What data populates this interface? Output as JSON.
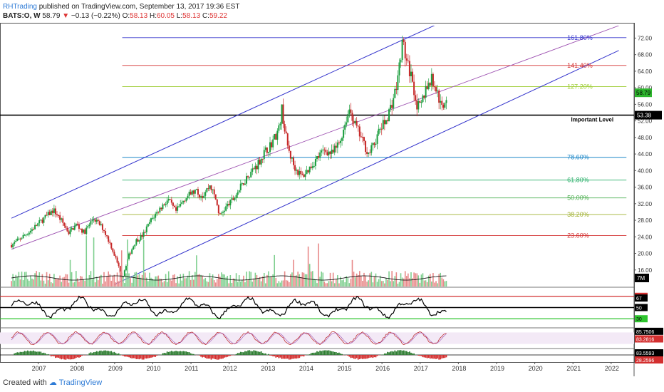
{
  "header": {
    "author": "RHTrading",
    "published": " published on TradingView.com, September 13, 2017 19:36 EST",
    "ticker": "BATS:O, W",
    "last": "58.79",
    "change": "−0.13 (−0.22%)",
    "open_label": "O:",
    "open": "58.13",
    "high_label": "H:",
    "high": "60.05",
    "low_label": "L:",
    "low": "58.13",
    "close_label": "C:",
    "close": "59.22"
  },
  "footer": {
    "created_with": "Created with",
    "brand": "TradingView"
  },
  "colors": {
    "up": "#1b9e3e",
    "down": "#c62828",
    "channel": "#3333cc",
    "median": "#9c4fb0",
    "fib_161": "#3333cc",
    "fib_141": "#d32f2f",
    "fib_127": "#9ccc2f",
    "fib_786": "#1e88c8",
    "fib_618": "#2ab06a",
    "fib_50": "#4caf50",
    "fib_382": "#a0b030",
    "fib_236": "#d32f2f",
    "important": "#000000",
    "price_tag": "#2db52d"
  },
  "chart_data": {
    "type": "candlestick",
    "x_tick_labels": [
      "2007",
      "2008",
      "2009",
      "2010",
      "2011",
      "2012",
      "2013",
      "2014",
      "2015",
      "2016",
      "2017",
      "2018",
      "2019",
      "2020",
      "2021",
      "2022"
    ],
    "y_tick_labels": [
      "16.00",
      "20.00",
      "24.00",
      "28.00",
      "32.00",
      "36.00",
      "40.00",
      "44.00",
      "48.00",
      "52.00",
      "56.00",
      "60.00",
      "64.00",
      "68.00",
      "72.00"
    ],
    "ylim": [
      12,
      75
    ],
    "fib_levels": [
      {
        "label": "161.80%",
        "value": 72.1,
        "color_key": "fib_161"
      },
      {
        "label": "141.40%",
        "value": 65.4,
        "color_key": "fib_141"
      },
      {
        "label": "127.20%",
        "value": 60.3,
        "color_key": "fib_127"
      },
      {
        "label": "78.60%",
        "value": 43.2,
        "color_key": "fib_786"
      },
      {
        "label": "61.80%",
        "value": 37.7,
        "color_key": "fib_618"
      },
      {
        "label": "50.00%",
        "value": 33.4,
        "color_key": "fib_50"
      },
      {
        "label": "38.20%",
        "value": 29.4,
        "color_key": "fib_382"
      },
      {
        "label": "23.60%",
        "value": 24.3,
        "color_key": "fib_236"
      }
    ],
    "important_level": {
      "label": "Important Level",
      "value": 53.38,
      "tag": "53.38"
    },
    "last_price_tag": "58.79",
    "price_path": [
      [
        2006.3,
        22
      ],
      [
        2006.8,
        25.5
      ],
      [
        2007.1,
        28
      ],
      [
        2007.4,
        30.5
      ],
      [
        2007.6,
        28
      ],
      [
        2007.8,
        25
      ],
      [
        2008.0,
        27
      ],
      [
        2008.2,
        25
      ],
      [
        2008.45,
        28.5
      ],
      [
        2008.7,
        26
      ],
      [
        2008.9,
        22
      ],
      [
        2009.1,
        17
      ],
      [
        2009.2,
        14
      ],
      [
        2009.35,
        19
      ],
      [
        2009.55,
        23
      ],
      [
        2009.75,
        24.5
      ],
      [
        2009.95,
        28
      ],
      [
        2010.2,
        31
      ],
      [
        2010.4,
        33
      ],
      [
        2010.6,
        30
      ],
      [
        2010.85,
        33.5
      ],
      [
        2011.1,
        35
      ],
      [
        2011.3,
        34
      ],
      [
        2011.5,
        36.5
      ],
      [
        2011.65,
        33
      ],
      [
        2011.75,
        29
      ],
      [
        2011.9,
        31
      ],
      [
        2012.1,
        33
      ],
      [
        2012.3,
        36
      ],
      [
        2012.5,
        39
      ],
      [
        2012.7,
        41
      ],
      [
        2012.9,
        44
      ],
      [
        2013.1,
        46.5
      ],
      [
        2013.3,
        50
      ],
      [
        2013.38,
        55
      ],
      [
        2013.45,
        50
      ],
      [
        2013.55,
        45
      ],
      [
        2013.7,
        41
      ],
      [
        2013.9,
        38.5
      ],
      [
        2014.05,
        40
      ],
      [
        2014.3,
        43
      ],
      [
        2014.5,
        45
      ],
      [
        2014.7,
        44
      ],
      [
        2014.9,
        47
      ],
      [
        2015.05,
        52
      ],
      [
        2015.15,
        55
      ],
      [
        2015.3,
        51
      ],
      [
        2015.5,
        47
      ],
      [
        2015.65,
        44
      ],
      [
        2015.8,
        46.5
      ],
      [
        2015.95,
        50
      ],
      [
        2016.1,
        52
      ],
      [
        2016.25,
        56
      ],
      [
        2016.4,
        61
      ],
      [
        2016.5,
        69
      ],
      [
        2016.55,
        71
      ],
      [
        2016.65,
        66
      ],
      [
        2016.8,
        62
      ],
      [
        2016.9,
        56
      ],
      [
        2017.0,
        55
      ],
      [
        2017.15,
        60
      ],
      [
        2017.3,
        62
      ],
      [
        2017.45,
        59
      ],
      [
        2017.55,
        55
      ],
      [
        2017.65,
        57
      ],
      [
        2017.72,
        59.2
      ]
    ],
    "channel": {
      "upper_x": [
        2006.3,
        2017.6
      ],
      "upper_y": [
        28.5,
        76
      ],
      "lower_x": [
        2009.0,
        2022.2
      ],
      "lower_y": [
        12.5,
        69
      ],
      "median_x": [
        2006.3,
        2022.2
      ],
      "median_y": [
        21,
        75
      ]
    },
    "volume_tag": "7M",
    "indicators": [
      {
        "name": "rsi",
        "tags": [
          "70",
          "67",
          "50",
          "30"
        ]
      },
      {
        "name": "stoch",
        "tags": [
          "85.7506",
          "83.2816"
        ]
      },
      {
        "name": "osc",
        "tags": [
          "83.5593",
          "28.2596"
        ]
      }
    ]
  }
}
